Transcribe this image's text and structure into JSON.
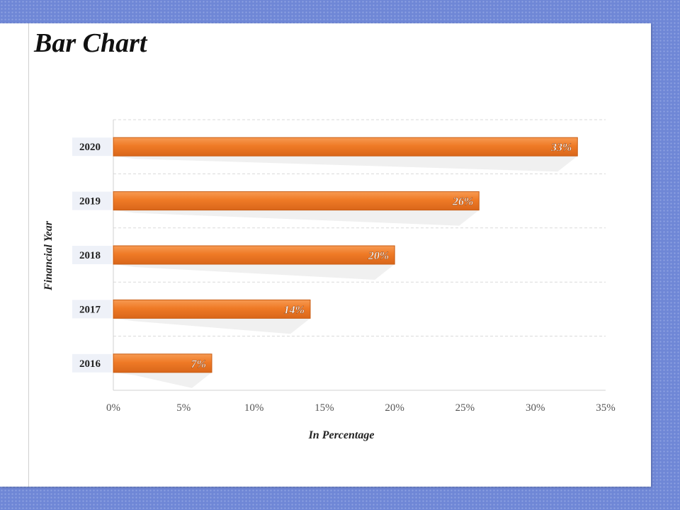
{
  "slide": {
    "title": "Bar Chart"
  },
  "chart_data": {
    "type": "bar",
    "orientation": "horizontal",
    "categories": [
      "2016",
      "2017",
      "2018",
      "2019",
      "2020"
    ],
    "values": [
      7,
      14,
      20,
      26,
      33
    ],
    "data_labels": [
      "7%",
      "14%",
      "20%",
      "26%",
      "33%"
    ],
    "xlabel": "In Percentage",
    "ylabel": "Financial Year",
    "xlim": [
      0,
      35
    ],
    "xticks": [
      0,
      5,
      10,
      15,
      20,
      25,
      30,
      35
    ],
    "xtick_labels": [
      "0%",
      "5%",
      "10%",
      "15%",
      "20%",
      "25%",
      "30%",
      "35%"
    ],
    "grid": "horizontal dashed",
    "legend": "none",
    "colors": {
      "bar": "#ef7a26",
      "bar_top": "#f58f42",
      "bar_border": "#c85d14",
      "gridline": "#d9d9d9",
      "label_box": "#eef1f8"
    }
  }
}
